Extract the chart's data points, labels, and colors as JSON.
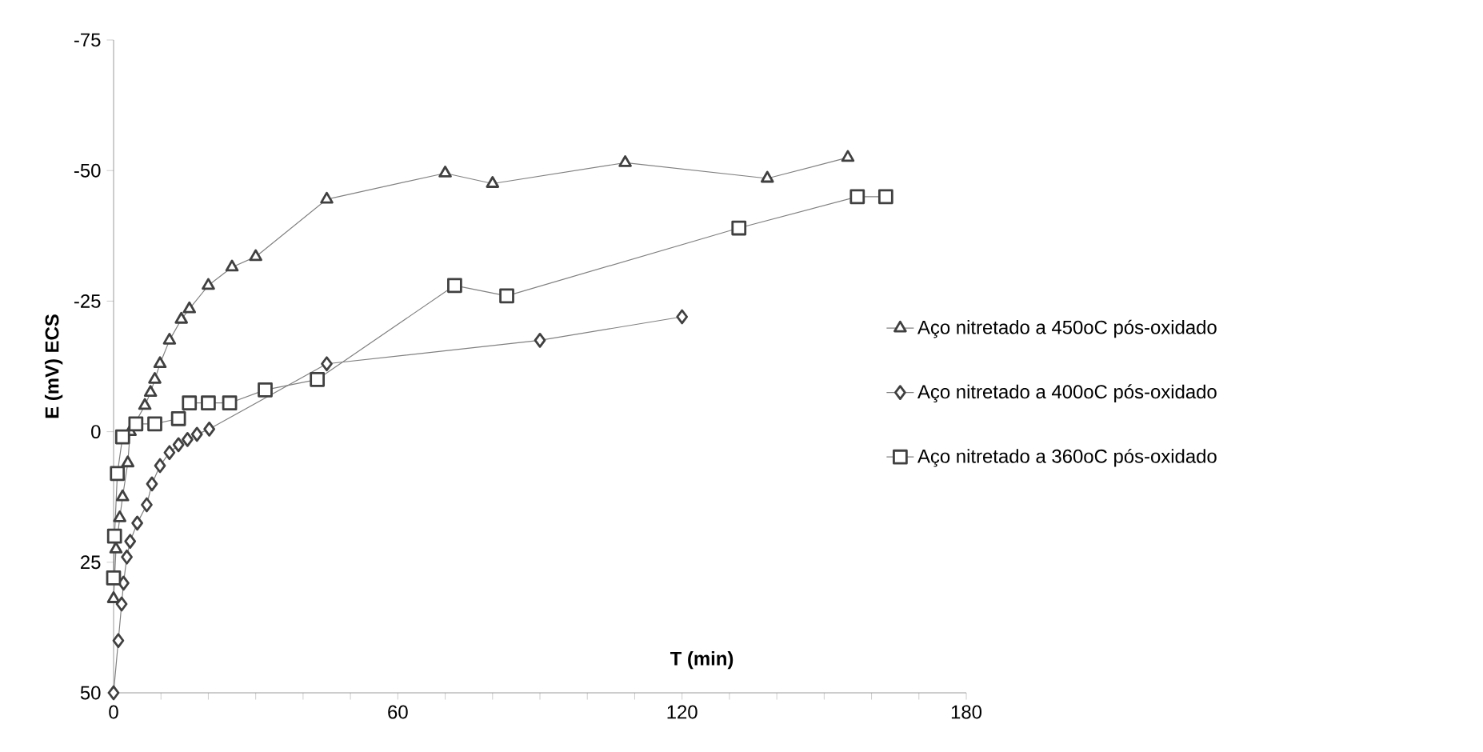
{
  "chart_data": {
    "type": "line",
    "xlabel": "T (min)",
    "ylabel": "E (mV) ECS",
    "xlim": [
      0,
      180
    ],
    "ylim": [
      50,
      -75
    ],
    "xticks": [
      0,
      {
        "value": 10,
        "label": null
      },
      {
        "value": 20,
        "label": null
      },
      {
        "value": 30,
        "label": null
      },
      {
        "value": 40,
        "label": null
      },
      {
        "value": 50,
        "label": null
      },
      60,
      {
        "value": 70,
        "label": null
      },
      {
        "value": 80,
        "label": null
      },
      {
        "value": 90,
        "label": null
      },
      {
        "value": 100,
        "label": null
      },
      {
        "value": 110,
        "label": null
      },
      120,
      {
        "value": 130,
        "label": null
      },
      {
        "value": 140,
        "label": null
      },
      {
        "value": 150,
        "label": null
      },
      {
        "value": 160,
        "label": null
      },
      {
        "value": 170,
        "label": null
      },
      180
    ],
    "yticks": [
      -75,
      -50,
      -25,
      0,
      25,
      50
    ],
    "grid": false,
    "legend": "right",
    "line_style": "solid",
    "series": [
      {
        "name": "Aço nitretado a 450oC pós-oxidado",
        "color": "#404040",
        "marker": "triangle",
        "x": [
          0,
          0.5,
          1.3,
          1.9,
          3,
          3.5,
          4.5,
          5.5,
          6.6,
          7.8,
          8.7,
          9.8,
          11.8,
          14.3,
          16,
          20,
          25,
          30,
          45,
          70,
          80,
          108,
          138,
          155
        ],
        "values": [
          32,
          22.5,
          16.5,
          12.5,
          6,
          0,
          null,
          null,
          -5,
          -7.5,
          -10,
          -13,
          -17.5,
          -21.5,
          -23.5,
          -28,
          -31.5,
          -33.5,
          -44.5,
          -49.5,
          -47.5,
          -51.5,
          -48.5,
          -52.5
        ]
      },
      {
        "name": "Aço  nitretado a 400oC pós-oxidado",
        "color": "#404040",
        "marker": "diamond",
        "x": [
          0,
          1,
          1.7,
          2.1,
          2.8,
          3.5,
          5,
          7,
          8.1,
          9.8,
          11.8,
          13.7,
          15.6,
          17.6,
          20.2,
          45,
          90,
          120
        ],
        "values": [
          50,
          40,
          33,
          29,
          24,
          21,
          17.5,
          14,
          10,
          6.5,
          4,
          2.5,
          1.5,
          0.5,
          -0.5,
          -13,
          -17.5,
          -22
        ]
      },
      {
        "name": "Aço nitretado a 360oC pós-oxidado",
        "color": "#404040",
        "marker": "square",
        "x": [
          0,
          0.2,
          0.8,
          1.9,
          3,
          4.7,
          8.7,
          13.7,
          16,
          20,
          24.5,
          32,
          43,
          72,
          83,
          132,
          157,
          163
        ],
        "values": [
          28,
          20,
          8,
          1,
          null,
          -1.5,
          -1.5,
          -2.5,
          -5.5,
          -5.5,
          -5.5,
          -8,
          -10,
          -28,
          -26,
          -39,
          -45,
          -45
        ]
      }
    ]
  }
}
